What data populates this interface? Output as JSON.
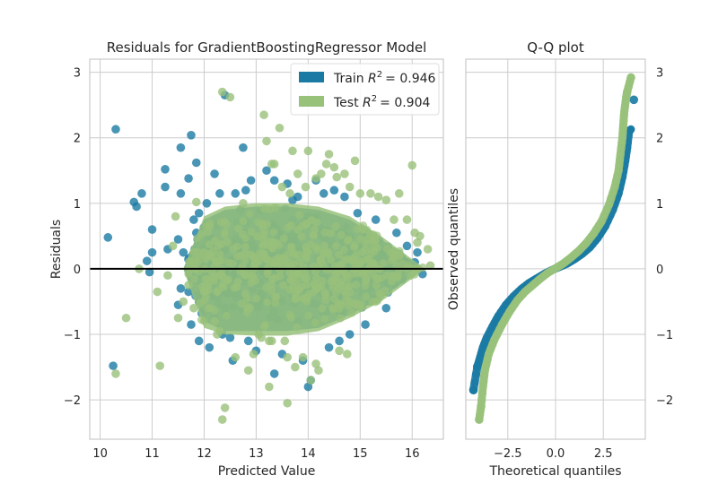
{
  "colors": {
    "train": "#1a7aa3",
    "test": "#98c17a",
    "zero_line": "#000000",
    "grid": "#cccccc",
    "frame": "#bfbfbf",
    "text": "#262626"
  },
  "chart_data": [
    {
      "type": "scatter",
      "title": "Residuals for GradientBoostingRegressor Model",
      "xlabel": "Predicted Value",
      "ylabel": "Residuals",
      "xlim": [
        9.8,
        16.6
      ],
      "ylim": [
        -2.6,
        3.2
      ],
      "xticks": [
        "10",
        "11",
        "12",
        "13",
        "14",
        "15",
        "16"
      ],
      "yticks": [
        "−2",
        "−1",
        "0",
        "1",
        "2",
        "3"
      ],
      "xtick_values": [
        10,
        11,
        12,
        13,
        14,
        15,
        16
      ],
      "ytick_values": [
        -2,
        -1,
        0,
        1,
        2,
        3
      ],
      "grid": true,
      "zero_line": 0,
      "legend_position": "top-right",
      "legend": {
        "train_prefix": "Train ",
        "train_value": "= 0.946",
        "test_prefix": "Test ",
        "test_value": "= 0.904",
        "metric": "R",
        "metric_sup": "2"
      },
      "series": [
        {
          "name": "Train",
          "dense_core": [
            [
              12.0,
              -0.8
            ],
            [
              12.4,
              -0.95
            ],
            [
              13.0,
              -0.95
            ],
            [
              13.6,
              -0.95
            ],
            [
              14.2,
              -0.9
            ],
            [
              14.8,
              -0.7
            ],
            [
              15.4,
              -0.45
            ],
            [
              16.2,
              0.0
            ],
            [
              15.4,
              0.45
            ],
            [
              14.8,
              0.75
            ],
            [
              14.2,
              0.9
            ],
            [
              13.6,
              0.95
            ],
            [
              13.0,
              0.95
            ],
            [
              12.4,
              0.9
            ],
            [
              12.0,
              0.75
            ],
            [
              11.6,
              0.0
            ]
          ],
          "points": [
            [
              10.15,
              0.48
            ],
            [
              10.3,
              2.13
            ],
            [
              10.25,
              -1.48
            ],
            [
              10.65,
              1.02
            ],
            [
              10.8,
              1.15
            ],
            [
              10.7,
              0.95
            ],
            [
              10.9,
              0.12
            ],
            [
              11.0,
              0.25
            ],
            [
              10.95,
              -0.05
            ],
            [
              11.0,
              0.6
            ],
            [
              11.3,
              0.3
            ],
            [
              11.25,
              1.25
            ],
            [
              11.25,
              1.52
            ],
            [
              11.5,
              0.45
            ],
            [
              11.55,
              1.15
            ],
            [
              11.6,
              0.25
            ],
            [
              11.55,
              1.85
            ],
            [
              11.7,
              1.38
            ],
            [
              11.75,
              2.04
            ],
            [
              11.8,
              0.75
            ],
            [
              11.85,
              1.62
            ],
            [
              11.85,
              0.55
            ],
            [
              11.9,
              0.85
            ],
            [
              11.5,
              -0.55
            ],
            [
              11.55,
              -0.3
            ],
            [
              11.7,
              -0.35
            ],
            [
              11.75,
              -0.85
            ],
            [
              11.8,
              -0.15
            ],
            [
              11.9,
              -0.5
            ],
            [
              11.9,
              -1.1
            ],
            [
              12.0,
              -0.5
            ],
            [
              12.1,
              -1.2
            ],
            [
              12.05,
              1.0
            ],
            [
              12.2,
              1.45
            ],
            [
              12.3,
              1.15
            ],
            [
              12.4,
              2.65
            ],
            [
              12.1,
              0.0
            ],
            [
              12.2,
              -0.75
            ],
            [
              12.35,
              -1.0
            ],
            [
              12.5,
              -1.05
            ],
            [
              12.55,
              -1.4
            ],
            [
              12.6,
              1.15
            ],
            [
              12.7,
              0.9
            ],
            [
              12.75,
              1.85
            ],
            [
              12.8,
              1.2
            ],
            [
              12.85,
              -1.1
            ],
            [
              12.9,
              1.35
            ],
            [
              13.0,
              -1.25
            ],
            [
              13.2,
              1.5
            ],
            [
              13.35,
              1.35
            ],
            [
              13.5,
              -1.3
            ],
            [
              13.6,
              1.3
            ],
            [
              13.7,
              1.05
            ],
            [
              13.8,
              1.1
            ],
            [
              13.9,
              -1.4
            ],
            [
              14.0,
              -1.8
            ],
            [
              14.05,
              -1.7
            ],
            [
              14.15,
              1.35
            ],
            [
              14.3,
              1.15
            ],
            [
              14.4,
              -1.2
            ],
            [
              14.5,
              1.2
            ],
            [
              14.6,
              -1.1
            ],
            [
              14.7,
              1.1
            ],
            [
              14.8,
              -1.0
            ],
            [
              14.95,
              0.85
            ],
            [
              15.1,
              -0.85
            ],
            [
              15.3,
              0.75
            ],
            [
              15.5,
              -0.6
            ],
            [
              15.7,
              0.55
            ],
            [
              15.9,
              0.35
            ],
            [
              16.05,
              0.1
            ],
            [
              16.1,
              0.25
            ],
            [
              16.2,
              -0.08
            ],
            [
              13.35,
              -1.6
            ]
          ]
        },
        {
          "name": "Test",
          "dense_core": [
            [
              12.0,
              -0.9
            ],
            [
              12.4,
              -1.0
            ],
            [
              13.0,
              -1.02
            ],
            [
              13.6,
              -1.02
            ],
            [
              14.2,
              -0.95
            ],
            [
              14.8,
              -0.75
            ],
            [
              15.4,
              -0.5
            ],
            [
              16.25,
              0.0
            ],
            [
              15.4,
              0.5
            ],
            [
              14.8,
              0.8
            ],
            [
              14.2,
              0.95
            ],
            [
              13.6,
              1.0
            ],
            [
              13.0,
              1.0
            ],
            [
              12.4,
              0.95
            ],
            [
              12.0,
              0.8
            ],
            [
              11.6,
              0.0
            ]
          ],
          "points": [
            [
              10.3,
              -1.6
            ],
            [
              10.5,
              -0.75
            ],
            [
              10.75,
              0.0
            ],
            [
              11.1,
              -0.35
            ],
            [
              11.15,
              -1.48
            ],
            [
              11.3,
              -0.1
            ],
            [
              11.4,
              0.35
            ],
            [
              11.45,
              0.8
            ],
            [
              11.5,
              -0.75
            ],
            [
              11.6,
              -0.5
            ],
            [
              11.7,
              -0.25
            ],
            [
              11.8,
              -0.6
            ],
            [
              11.85,
              1.02
            ],
            [
              12.0,
              -0.35
            ],
            [
              12.1,
              0.65
            ],
            [
              12.2,
              -0.8
            ],
            [
              12.25,
              -1.0
            ],
            [
              12.3,
              -0.95
            ],
            [
              12.35,
              2.7
            ],
            [
              12.5,
              2.62
            ],
            [
              12.35,
              -2.3
            ],
            [
              12.4,
              -2.12
            ],
            [
              12.6,
              -1.35
            ],
            [
              12.75,
              1.0
            ],
            [
              12.85,
              -1.55
            ],
            [
              12.95,
              -1.3
            ],
            [
              13.05,
              -1.0
            ],
            [
              13.1,
              -1.05
            ],
            [
              13.15,
              2.35
            ],
            [
              13.2,
              1.95
            ],
            [
              13.25,
              -1.1
            ],
            [
              13.3,
              -1.1
            ],
            [
              13.25,
              -1.8
            ],
            [
              13.3,
              1.6
            ],
            [
              13.35,
              1.6
            ],
            [
              13.5,
              1.25
            ],
            [
              13.55,
              -1.1
            ],
            [
              13.6,
              -1.35
            ],
            [
              13.6,
              -2.05
            ],
            [
              13.65,
              1.15
            ],
            [
              13.7,
              1.8
            ],
            [
              13.75,
              -1.5
            ],
            [
              13.8,
              1.45
            ],
            [
              13.9,
              -1.35
            ],
            [
              13.95,
              1.25
            ],
            [
              14.0,
              1.8
            ],
            [
              14.05,
              -1.7
            ],
            [
              14.15,
              1.38
            ],
            [
              14.2,
              -1.55
            ],
            [
              14.25,
              1.45
            ],
            [
              14.35,
              1.6
            ],
            [
              14.4,
              1.75
            ],
            [
              14.5,
              1.55
            ],
            [
              14.55,
              1.4
            ],
            [
              14.6,
              -1.25
            ],
            [
              14.7,
              1.45
            ],
            [
              14.75,
              -1.3
            ],
            [
              14.8,
              1.25
            ],
            [
              14.9,
              1.65
            ],
            [
              15.0,
              1.15
            ],
            [
              15.2,
              1.15
            ],
            [
              15.35,
              1.1
            ],
            [
              15.5,
              1.05
            ],
            [
              15.65,
              0.75
            ],
            [
              15.75,
              1.15
            ],
            [
              15.9,
              0.75
            ],
            [
              16.0,
              1.58
            ],
            [
              16.05,
              0.55
            ],
            [
              16.1,
              0.4
            ],
            [
              16.15,
              0.5
            ],
            [
              16.3,
              0.3
            ],
            [
              16.35,
              0.05
            ],
            [
              14.15,
              -1.45
            ],
            [
              13.45,
              2.15
            ]
          ]
        }
      ]
    },
    {
      "type": "scatter",
      "title": "Q-Q plot",
      "xlabel": "Theoretical quantiles",
      "ylabel": "Observed quantiles",
      "xlim": [
        -4.7,
        4.7
      ],
      "ylim": [
        -2.6,
        3.2
      ],
      "xticks": [
        "−2.5",
        "0.0",
        "2.5"
      ],
      "yticks": [
        "−2",
        "−1",
        "0",
        "1",
        "2",
        "3"
      ],
      "xtick_values": [
        -2.5,
        0.0,
        2.5
      ],
      "ytick_values": [
        -2,
        -1,
        0,
        1,
        2,
        3
      ],
      "grid": true,
      "series": [
        {
          "name": "Train",
          "curve": [
            [
              -4.3,
              -1.85
            ],
            [
              -4.1,
              -1.5
            ],
            [
              -3.95,
              -1.35
            ],
            [
              -3.8,
              -1.2
            ],
            [
              -3.6,
              -1.05
            ],
            [
              -3.3,
              -0.88
            ],
            [
              -3.0,
              -0.72
            ],
            [
              -2.6,
              -0.55
            ],
            [
              -2.2,
              -0.42
            ],
            [
              -1.8,
              -0.31
            ],
            [
              -1.4,
              -0.22
            ],
            [
              -1.0,
              -0.15
            ],
            [
              -0.6,
              -0.08
            ],
            [
              -0.2,
              -0.02
            ],
            [
              0.2,
              0.03
            ],
            [
              0.6,
              0.08
            ],
            [
              1.0,
              0.15
            ],
            [
              1.4,
              0.23
            ],
            [
              1.8,
              0.33
            ],
            [
              2.2,
              0.47
            ],
            [
              2.6,
              0.65
            ],
            [
              3.0,
              0.9
            ],
            [
              3.3,
              1.15
            ],
            [
              3.5,
              1.4
            ],
            [
              3.65,
              1.65
            ],
            [
              3.75,
              1.85
            ],
            [
              3.85,
              2.1
            ],
            [
              3.95,
              2.13
            ]
          ],
          "extremes": [
            [
              -4.3,
              -1.85
            ],
            [
              -4.1,
              -1.49
            ],
            [
              4.1,
              2.58
            ]
          ]
        },
        {
          "name": "Test",
          "curve": [
            [
              -4.0,
              -2.3
            ],
            [
              -3.9,
              -2.1
            ],
            [
              -3.8,
              -1.8
            ],
            [
              -3.7,
              -1.55
            ],
            [
              -3.5,
              -1.3
            ],
            [
              -3.2,
              -1.08
            ],
            [
              -2.8,
              -0.85
            ],
            [
              -2.4,
              -0.65
            ],
            [
              -2.0,
              -0.48
            ],
            [
              -1.6,
              -0.35
            ],
            [
              -1.2,
              -0.25
            ],
            [
              -0.8,
              -0.15
            ],
            [
              -0.4,
              -0.06
            ],
            [
              0.0,
              0.01
            ],
            [
              0.4,
              0.08
            ],
            [
              0.8,
              0.17
            ],
            [
              1.2,
              0.27
            ],
            [
              1.6,
              0.39
            ],
            [
              2.0,
              0.54
            ],
            [
              2.4,
              0.72
            ],
            [
              2.8,
              0.98
            ],
            [
              3.1,
              1.25
            ],
            [
              3.3,
              1.5
            ],
            [
              3.4,
              1.75
            ],
            [
              3.5,
              2.0
            ],
            [
              3.55,
              2.2
            ],
            [
              3.6,
              2.4
            ],
            [
              3.7,
              2.62
            ],
            [
              3.75,
              2.7
            ],
            [
              3.95,
              2.92
            ]
          ],
          "extremes": [
            [
              -4.0,
              -2.3
            ],
            [
              -3.9,
              -2.1
            ],
            [
              3.75,
              2.7
            ],
            [
              3.95,
              2.92
            ]
          ]
        }
      ]
    }
  ]
}
